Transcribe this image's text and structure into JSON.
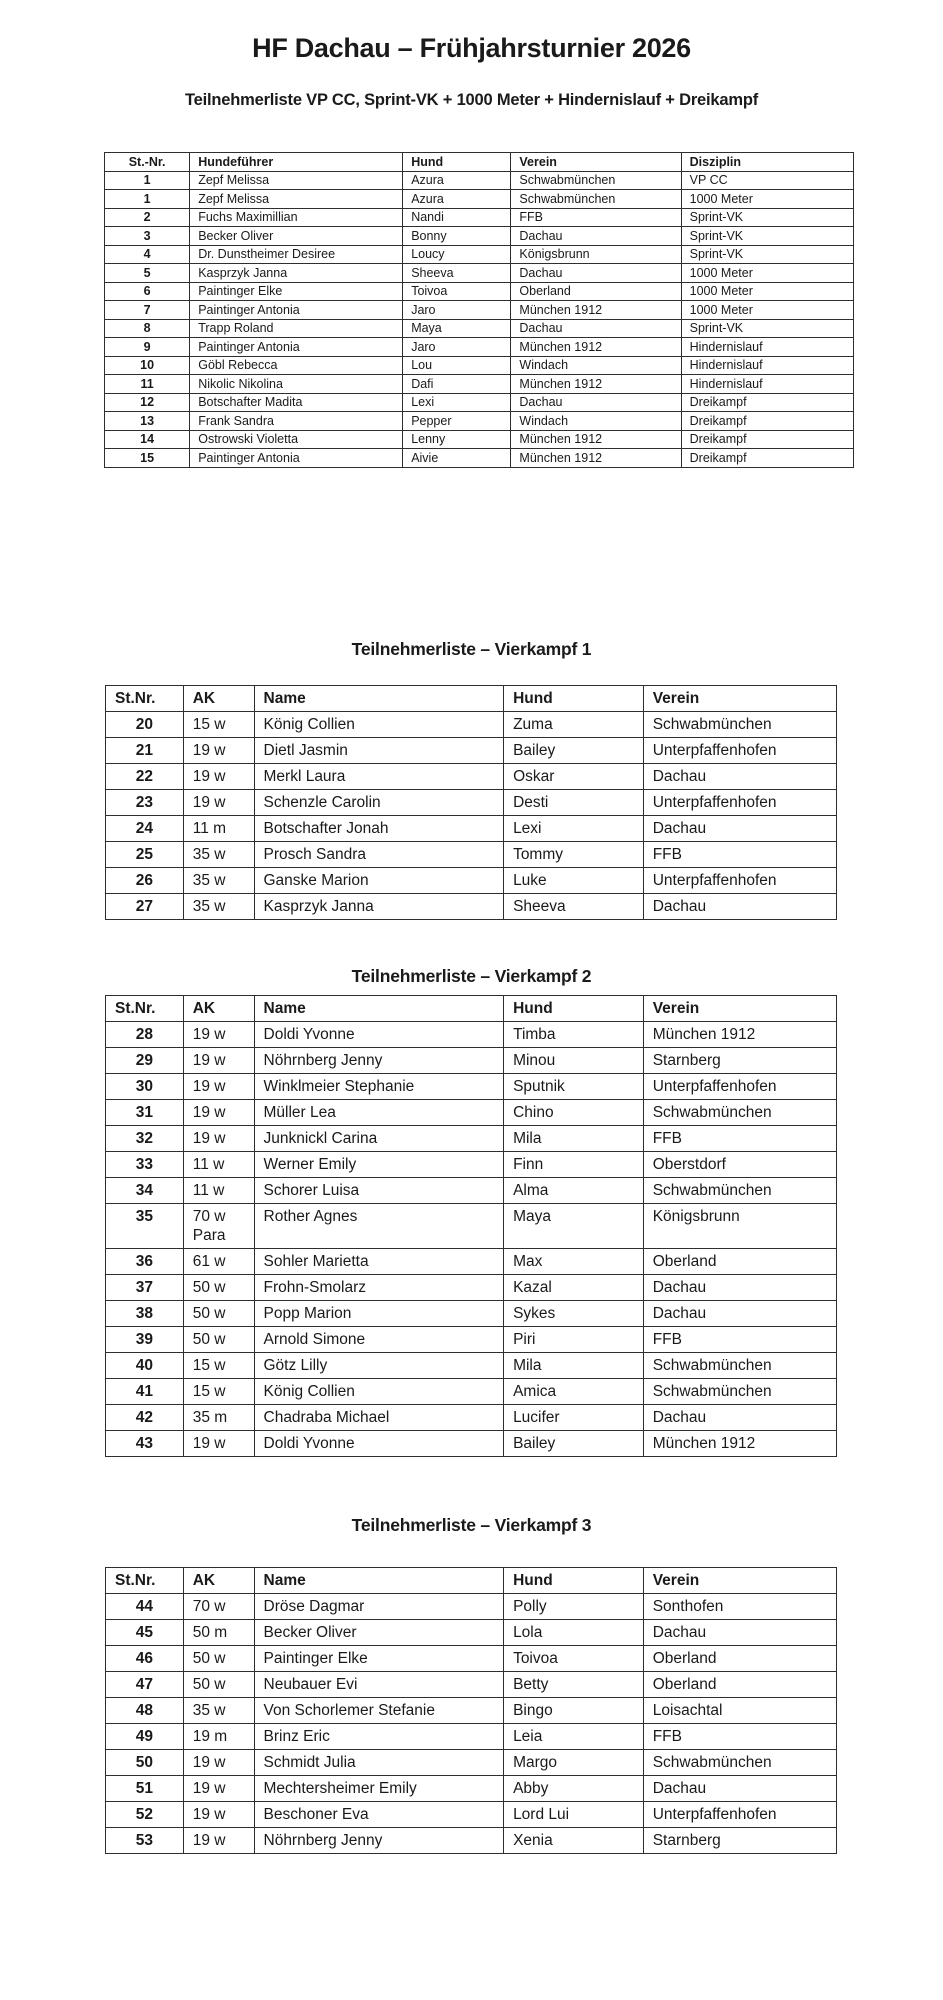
{
  "header": {
    "title": "HF Dachau – Frühjahrsturnier 2026",
    "subtitle": "Teilnehmerliste VP CC, Sprint-VK + 1000 Meter + Hindernislauf + Dreikampf"
  },
  "tables": {
    "disciplines": {
      "headers": [
        "St.-Nr.",
        "Hundeführer",
        "Hund",
        "Verein",
        "Disziplin"
      ],
      "rows": [
        [
          "1",
          "Zepf Melissa",
          "Azura",
          "Schwabmünchen",
          "VP CC"
        ],
        [
          "1",
          "Zepf Melissa",
          "Azura",
          "Schwabmünchen",
          "1000 Meter"
        ],
        [
          "2",
          "Fuchs Maximillian",
          "Nandi",
          "FFB",
          "Sprint-VK"
        ],
        [
          "3",
          "Becker Oliver",
          "Bonny",
          "Dachau",
          "Sprint-VK"
        ],
        [
          "4",
          "Dr. Dunstheimer Desiree",
          "Loucy",
          "Königsbrunn",
          "Sprint-VK"
        ],
        [
          "5",
          "Kasprzyk Janna",
          "Sheeva",
          "Dachau",
          "1000 Meter"
        ],
        [
          "6",
          "Paintinger Elke",
          "Toivoa",
          "Oberland",
          "1000 Meter"
        ],
        [
          "7",
          "Paintinger Antonia",
          "Jaro",
          "München 1912",
          "1000 Meter"
        ],
        [
          "8",
          "Trapp Roland",
          "Maya",
          "Dachau",
          "Sprint-VK"
        ],
        [
          "9",
          "Paintinger Antonia",
          "Jaro",
          "München 1912",
          "Hindernislauf"
        ],
        [
          "10",
          "Göbl Rebecca",
          "Lou",
          "Windach",
          "Hindernislauf"
        ],
        [
          "11",
          "Nikolic Nikolina",
          "Dafi",
          "München 1912",
          "Hindernislauf"
        ],
        [
          "12",
          "Botschafter Madita",
          "Lexi",
          "Dachau",
          "Dreikampf"
        ],
        [
          "13",
          "Frank Sandra",
          "Pepper",
          "Windach",
          "Dreikampf"
        ],
        [
          "14",
          "Ostrowski Violetta",
          "Lenny",
          "München 1912",
          "Dreikampf"
        ],
        [
          "15",
          "Paintinger Antonia",
          "Aivie",
          "München 1912",
          "Dreikampf"
        ]
      ]
    },
    "vierkampf1": {
      "title": "Teilnehmerliste – Vierkampf 1",
      "headers": [
        "St.Nr.",
        "AK",
        "Name",
        "Hund",
        "Verein"
      ],
      "rows": [
        [
          "20",
          "15 w",
          "König Collien",
          "Zuma",
          "Schwabmünchen"
        ],
        [
          "21",
          "19 w",
          "Dietl Jasmin",
          "Bailey",
          "Unterpfaffenhofen"
        ],
        [
          "22",
          "19 w",
          "Merkl Laura",
          "Oskar",
          "Dachau"
        ],
        [
          "23",
          "19 w",
          "Schenzle Carolin",
          "Desti",
          "Unterpfaffenhofen"
        ],
        [
          "24",
          "11 m",
          "Botschafter Jonah",
          "Lexi",
          "Dachau"
        ],
        [
          "25",
          "35 w",
          "Prosch Sandra",
          "Tommy",
          "FFB"
        ],
        [
          "26",
          "35 w",
          "Ganske Marion",
          "Luke",
          "Unterpfaffenhofen"
        ],
        [
          "27",
          "35 w",
          "Kasprzyk Janna",
          "Sheeva",
          "Dachau"
        ]
      ]
    },
    "vierkampf2": {
      "title": "Teilnehmerliste – Vierkampf 2",
      "headers": [
        "St.Nr.",
        "AK",
        "Name",
        "Hund",
        "Verein"
      ],
      "rows": [
        [
          "28",
          "19 w",
          "Doldi Yvonne",
          "Timba",
          "München 1912"
        ],
        [
          "29",
          "19 w",
          "Nöhrnberg Jenny",
          "Minou",
          "Starnberg"
        ],
        [
          "30",
          "19 w",
          "Winklmeier Stephanie",
          "Sputnik",
          "Unterpfaffenhofen"
        ],
        [
          "31",
          "19 w",
          "Müller Lea",
          "Chino",
          "Schwabmünchen"
        ],
        [
          "32",
          "19 w",
          "Junknickl Carina",
          "Mila",
          "FFB"
        ],
        [
          "33",
          "11 w",
          "Werner Emily",
          "Finn",
          "Oberstdorf"
        ],
        [
          "34",
          "11 w",
          "Schorer Luisa",
          "Alma",
          "Schwabmünchen"
        ],
        [
          "35",
          "70 w\nPara",
          "Rother Agnes",
          "Maya",
          "Königsbrunn"
        ],
        [
          "36",
          "61 w",
          "Sohler Marietta",
          "Max",
          "Oberland"
        ],
        [
          "37",
          "50 w",
          "Frohn-Smolarz",
          "Kazal",
          "Dachau"
        ],
        [
          "38",
          "50 w",
          "Popp Marion",
          "Sykes",
          "Dachau"
        ],
        [
          "39",
          "50 w",
          "Arnold Simone",
          "Piri",
          "FFB"
        ],
        [
          "40",
          "15 w",
          "Götz Lilly",
          "Mila",
          "Schwabmünchen"
        ],
        [
          "41",
          "15 w",
          "König Collien",
          "Amica",
          "Schwabmünchen"
        ],
        [
          "42",
          "35 m",
          "Chadraba Michael",
          "Lucifer",
          "Dachau"
        ],
        [
          "43",
          "19 w",
          "Doldi Yvonne",
          "Bailey",
          "München 1912"
        ]
      ]
    },
    "vierkampf3": {
      "title": "Teilnehmerliste – Vierkampf 3",
      "headers": [
        "St.Nr.",
        "AK",
        "Name",
        "Hund",
        "Verein"
      ],
      "rows": [
        [
          "44",
          "70 w",
          "Dröse Dagmar",
          "Polly",
          "Sonthofen"
        ],
        [
          "45",
          "50 m",
          "Becker Oliver",
          "Lola",
          "Dachau"
        ],
        [
          "46",
          "50 w",
          "Paintinger Elke",
          "Toivoa",
          "Oberland"
        ],
        [
          "47",
          "50 w",
          "Neubauer Evi",
          "Betty",
          "Oberland"
        ],
        [
          "48",
          "35 w",
          "Von Schorlemer Stefanie",
          "Bingo",
          "Loisachtal"
        ],
        [
          "49",
          "19 m",
          "Brinz Eric",
          "Leia",
          "FFB"
        ],
        [
          "50",
          "19 w",
          "Schmidt Julia",
          "Margo",
          "Schwabmünchen"
        ],
        [
          "51",
          "19 w",
          "Mechtersheimer Emily",
          "Abby",
          "Dachau"
        ],
        [
          "52",
          "19 w",
          "Beschoner Eva",
          "Lord Lui",
          "Unterpfaffenhofen"
        ],
        [
          "53",
          "19 w",
          "Nöhrnberg Jenny",
          "Xenia",
          "Starnberg"
        ]
      ]
    }
  }
}
